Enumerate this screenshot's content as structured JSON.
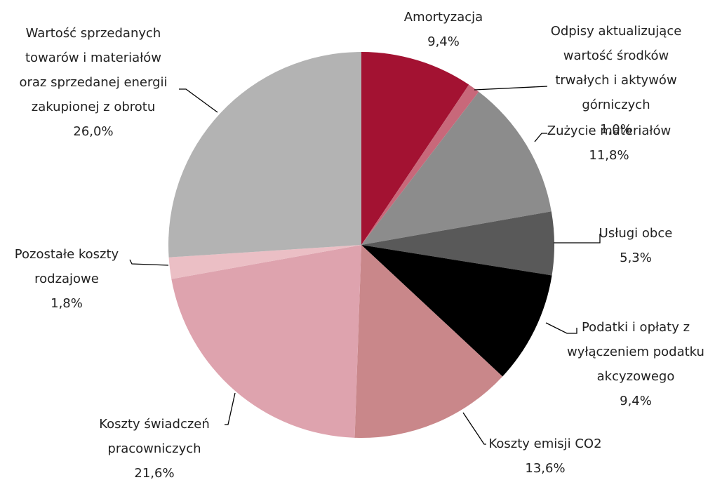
{
  "chart_data": {
    "type": "pie",
    "categories": [
      "Amortyzacja",
      "Odpisy aktualizujące\nwartość środków\ntrwałych i aktywów\ngórniczych",
      "Zużycie materiałów",
      "Usługi obce",
      "Podatki i opłaty z\nwyłączeniem podatku\nakcyzowego",
      "Koszty emisji CO2",
      "Koszty świadczeń\npracowniczych",
      "Pozostałe koszty\nrodzajowe",
      "Wartość sprzedanych\ntowarów i materiałów\noraz sprzedanej energii\nzakupionej z obrotu"
    ],
    "values": [
      9.4,
      1.0,
      11.8,
      5.3,
      9.4,
      13.6,
      21.6,
      1.8,
      26.0
    ],
    "value_labels": [
      "9,4%",
      "1,0%",
      "11,8%",
      "5,3%",
      "9,4%",
      "13,6%",
      "21,6%",
      "1,8%",
      "26,0%"
    ],
    "colors": [
      "#a31232",
      "#c8687a",
      "#8c8c8c",
      "#595959",
      "#000000",
      "#c9878a",
      "#dea3ae",
      "#ebbfc5",
      "#b3b3b3"
    ]
  }
}
